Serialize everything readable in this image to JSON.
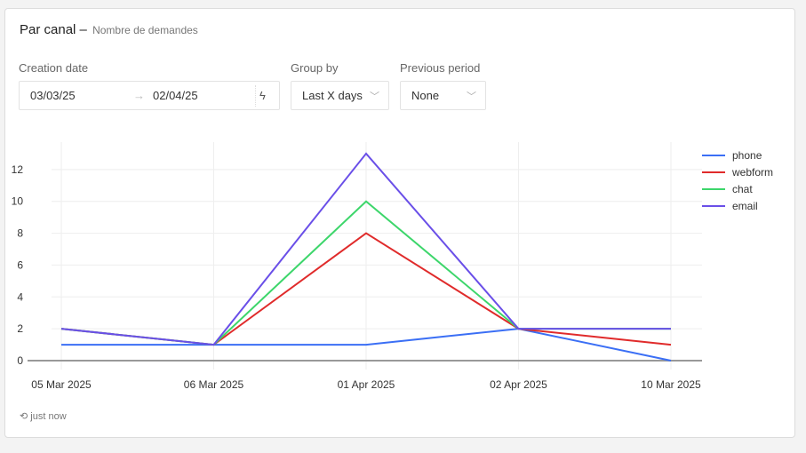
{
  "header": {
    "title": "Par canal",
    "separator": "–",
    "subtitle": "Nombre de demandes"
  },
  "filters": {
    "creation_date_label": "Creation date",
    "date_from": "03/03/25",
    "date_arrow": "→",
    "date_to": "02/04/25",
    "quick_icon": "lightning-icon",
    "group_by_label": "Group by",
    "group_by_value": "Last X days",
    "previous_period_label": "Previous period",
    "previous_period_value": "None"
  },
  "footer": {
    "icon": "history-icon",
    "updated": "just now"
  },
  "chart_data": {
    "type": "line",
    "categories": [
      "05 Mar 2025",
      "06 Mar 2025",
      "01 Apr 2025",
      "02 Apr 2025",
      "10 Mar 2025"
    ],
    "yticks": [
      "0",
      "2",
      "4",
      "6",
      "8",
      "10",
      "12"
    ],
    "ylim": [
      0,
      14
    ],
    "grid": true,
    "legend": "right",
    "series": [
      {
        "name": "phone",
        "color": "#3b6ff5",
        "values": [
          1,
          1,
          1,
          2,
          0
        ]
      },
      {
        "name": "webform",
        "color": "#e02b2b",
        "values": [
          2,
          1,
          8,
          2,
          1
        ]
      },
      {
        "name": "chat",
        "color": "#3dd66b",
        "values": [
          2,
          1,
          10,
          2,
          2
        ]
      },
      {
        "name": "email",
        "color": "#6a4fe8",
        "values": [
          2,
          1,
          13,
          2,
          2
        ]
      }
    ]
  }
}
